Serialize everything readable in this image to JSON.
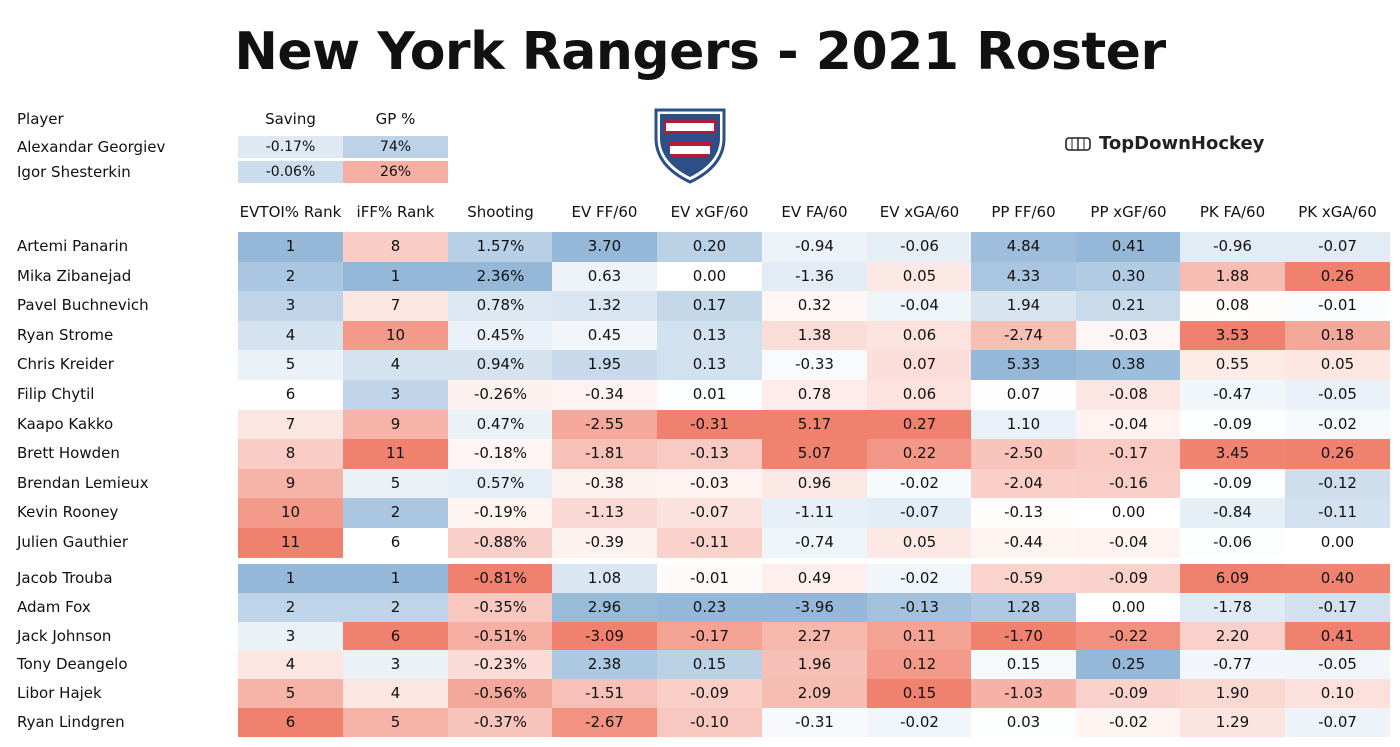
{
  "title": "New York Rangers - 2021 Roster",
  "brand": "TopDownHockey",
  "colors": {
    "blue_max": "#8fb4d6",
    "red_max": "#ef7a66",
    "neutral": "#ffffff"
  },
  "goalies": {
    "headers": {
      "player": "Player",
      "saving": "Saving",
      "gp": "GP %"
    },
    "rows": [
      {
        "name": "Alexandar Georgiev",
        "saving": "-0.17%",
        "gp": "74%"
      },
      {
        "name": "Igor Shesterkin",
        "saving": "-0.06%",
        "gp": "26%"
      }
    ]
  },
  "skater_headers": [
    "EVTOI% Rank",
    "iFF% Rank",
    "Shooting",
    "EV FF/60",
    "EV xGF/60",
    "EV FA/60",
    "EV xGA/60",
    "PP FF/60",
    "PP xGF/60",
    "PK FA/60",
    "PK xGA/60"
  ],
  "forwards": [
    {
      "name": "Artemi Panarin",
      "values": [
        "1",
        "8",
        "1.57%",
        "3.70",
        "0.20",
        "-0.94",
        "-0.06",
        "4.84",
        "0.41",
        "-0.96",
        "-0.07"
      ]
    },
    {
      "name": "Mika Zibanejad",
      "values": [
        "2",
        "1",
        "2.36%",
        "0.63",
        "0.00",
        "-1.36",
        "0.05",
        "4.33",
        "0.30",
        "1.88",
        "0.26"
      ]
    },
    {
      "name": "Pavel Buchnevich",
      "values": [
        "3",
        "7",
        "0.78%",
        "1.32",
        "0.17",
        "0.32",
        "-0.04",
        "1.94",
        "0.21",
        "0.08",
        "-0.01"
      ]
    },
    {
      "name": "Ryan Strome",
      "values": [
        "4",
        "10",
        "0.45%",
        "0.45",
        "0.13",
        "1.38",
        "0.06",
        "-2.74",
        "-0.03",
        "3.53",
        "0.18"
      ]
    },
    {
      "name": "Chris Kreider",
      "values": [
        "5",
        "4",
        "0.94%",
        "1.95",
        "0.13",
        "-0.33",
        "0.07",
        "5.33",
        "0.38",
        "0.55",
        "0.05"
      ]
    },
    {
      "name": "Filip Chytil",
      "values": [
        "6",
        "3",
        "-0.26%",
        "-0.34",
        "0.01",
        "0.78",
        "0.06",
        "0.07",
        "-0.08",
        "-0.47",
        "-0.05"
      ]
    },
    {
      "name": "Kaapo Kakko",
      "values": [
        "7",
        "9",
        "0.47%",
        "-2.55",
        "-0.31",
        "5.17",
        "0.27",
        "1.10",
        "-0.04",
        "-0.09",
        "-0.02"
      ]
    },
    {
      "name": "Brett Howden",
      "values": [
        "8",
        "11",
        "-0.18%",
        "-1.81",
        "-0.13",
        "5.07",
        "0.22",
        "-2.50",
        "-0.17",
        "3.45",
        "0.26"
      ]
    },
    {
      "name": "Brendan Lemieux",
      "values": [
        "9",
        "5",
        "0.57%",
        "-0.38",
        "-0.03",
        "0.96",
        "-0.02",
        "-2.04",
        "-0.16",
        "-0.09",
        "-0.12"
      ]
    },
    {
      "name": "Kevin Rooney",
      "values": [
        "10",
        "2",
        "-0.19%",
        "-1.13",
        "-0.07",
        "-1.11",
        "-0.07",
        "-0.13",
        "0.00",
        "-0.84",
        "-0.11"
      ]
    },
    {
      "name": "Julien Gauthier",
      "values": [
        "11",
        "6",
        "-0.88%",
        "-0.39",
        "-0.11",
        "-0.74",
        "0.05",
        "-0.44",
        "-0.04",
        "-0.06",
        "0.00"
      ]
    }
  ],
  "defense": [
    {
      "name": "Jacob Trouba",
      "values": [
        "1",
        "1",
        "-0.81%",
        "1.08",
        "-0.01",
        "0.49",
        "-0.02",
        "-0.59",
        "-0.09",
        "6.09",
        "0.40"
      ]
    },
    {
      "name": "Adam Fox",
      "values": [
        "2",
        "2",
        "-0.35%",
        "2.96",
        "0.23",
        "-3.96",
        "-0.13",
        "1.28",
        "0.00",
        "-1.78",
        "-0.17"
      ]
    },
    {
      "name": "Jack Johnson",
      "values": [
        "3",
        "6",
        "-0.51%",
        "-3.09",
        "-0.17",
        "2.27",
        "0.11",
        "-1.70",
        "-0.22",
        "2.20",
        "0.41"
      ]
    },
    {
      "name": "Tony Deangelo",
      "values": [
        "4",
        "3",
        "-0.23%",
        "2.38",
        "0.15",
        "1.96",
        "0.12",
        "0.15",
        "0.25",
        "-0.77",
        "-0.05"
      ]
    },
    {
      "name": "Libor Hajek",
      "values": [
        "5",
        "4",
        "-0.56%",
        "-1.51",
        "-0.09",
        "2.09",
        "0.15",
        "-1.03",
        "-0.09",
        "1.90",
        "0.10"
      ]
    },
    {
      "name": "Ryan Lindgren",
      "values": [
        "6",
        "5",
        "-0.37%",
        "-2.67",
        "-0.10",
        "-0.31",
        "-0.02",
        "0.03",
        "-0.02",
        "1.29",
        "-0.07"
      ]
    }
  ],
  "chart_data": {
    "type": "table",
    "title": "New York Rangers - 2021 Roster",
    "columns": [
      "Player",
      "EVTOI% Rank",
      "iFF% Rank",
      "Shooting",
      "EV FF/60",
      "EV xGF/60",
      "EV FA/60",
      "EV xGA/60",
      "PP FF/60",
      "PP xGF/60",
      "PK FA/60",
      "PK xGA/60"
    ],
    "color_direction": [
      "rank-low-good",
      "rank-low-good",
      "high-good",
      "high-good",
      "high-good",
      "low-good",
      "low-good",
      "high-good",
      "high-good",
      "low-good",
      "low-good"
    ],
    "goalie_columns": [
      "Player",
      "Saving",
      "GP %"
    ]
  }
}
